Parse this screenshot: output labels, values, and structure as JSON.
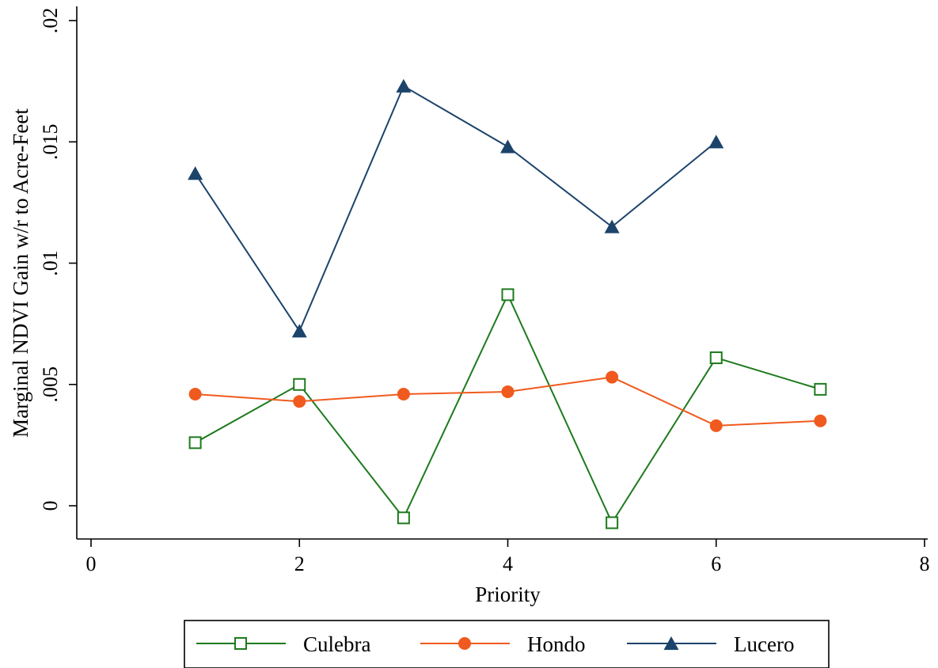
{
  "chart_data": {
    "type": "line",
    "xlabel": "Priority",
    "ylabel": "Marginal NDVI Gain w/r to Acre-Feet",
    "xlim": [
      0,
      8
    ],
    "ylim": [
      -0.0013,
      0.0202
    ],
    "xticks": [
      0,
      2,
      4,
      6,
      8
    ],
    "xtick_labels": [
      "0",
      "2",
      "4",
      "6",
      "8"
    ],
    "yticks": [
      0,
      0.005,
      0.01,
      0.015,
      0.02
    ],
    "ytick_labels": [
      "0",
      ".005",
      ".01",
      ".015",
      ".02"
    ],
    "grid": false,
    "legend_position": "bottom",
    "series": [
      {
        "name": "Culebra",
        "color": "#1e7a1e",
        "marker": "hollow-square",
        "points": [
          [
            1,
            0.0026
          ],
          [
            2,
            0.005
          ],
          [
            3,
            -0.0005
          ],
          [
            4,
            0.0087
          ],
          [
            5,
            -0.0007
          ],
          [
            6,
            0.0061
          ],
          [
            7,
            0.0048
          ]
        ]
      },
      {
        "name": "Hondo",
        "color": "#f05a1e",
        "marker": "filled-circle",
        "points": [
          [
            1,
            0.0046
          ],
          [
            2,
            0.0043
          ],
          [
            3,
            0.0046
          ],
          [
            4,
            0.0047
          ],
          [
            5,
            0.0053
          ],
          [
            6,
            0.0033
          ],
          [
            7,
            0.0035
          ]
        ]
      },
      {
        "name": "Lucero",
        "color": "#1c446b",
        "marker": "filled-triangle",
        "points": [
          [
            1,
            0.0137
          ],
          [
            2,
            0.0072
          ],
          [
            3,
            0.0173
          ],
          [
            4,
            0.0148
          ],
          [
            5,
            0.0115
          ],
          [
            6,
            0.015
          ]
        ]
      }
    ]
  }
}
